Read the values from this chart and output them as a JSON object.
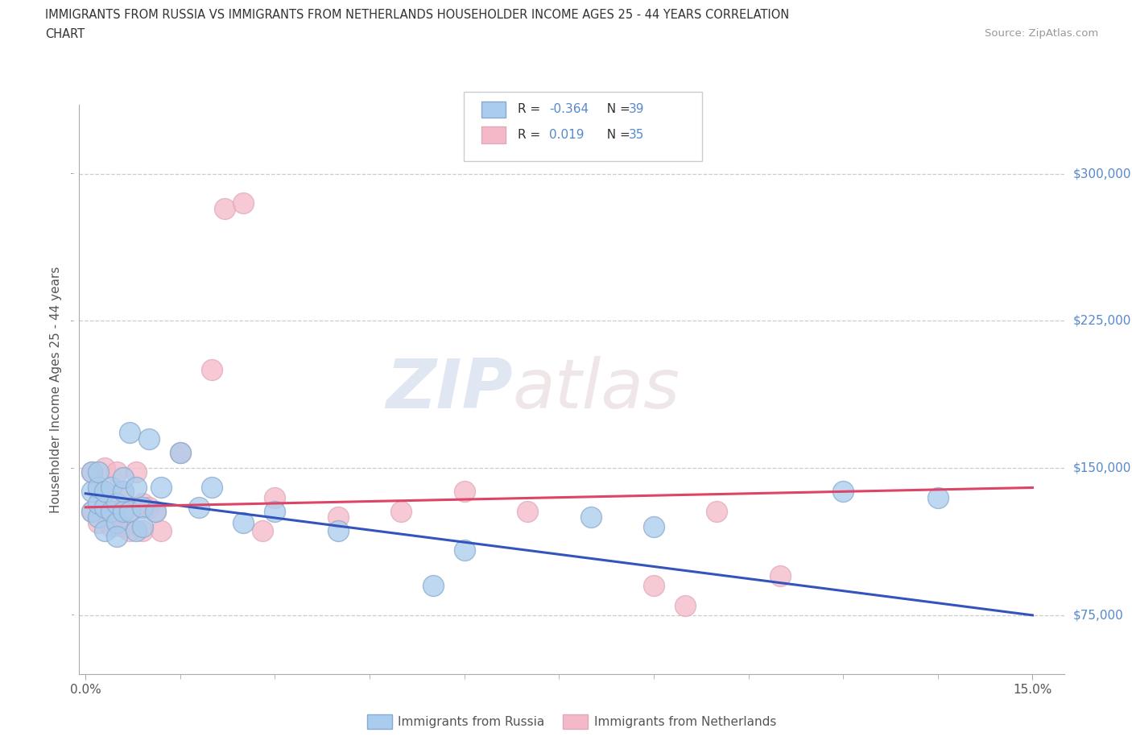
{
  "title_line1": "IMMIGRANTS FROM RUSSIA VS IMMIGRANTS FROM NETHERLANDS HOUSEHOLDER INCOME AGES 25 - 44 YEARS CORRELATION",
  "title_line2": "CHART",
  "source": "Source: ZipAtlas.com",
  "ylabel": "Householder Income Ages 25 - 44 years",
  "xlim": [
    -0.001,
    0.155
  ],
  "ylim": [
    45000,
    335000
  ],
  "ytick_values": [
    75000,
    150000,
    225000,
    300000
  ],
  "ytick_labels": [
    "$75,000",
    "$150,000",
    "$225,000",
    "$300,000"
  ],
  "xtick_major": [
    0.0,
    0.15
  ],
  "xtick_major_labels": [
    "0.0%",
    "15.0%"
  ],
  "xtick_minor": [
    0.015,
    0.03,
    0.045,
    0.06,
    0.075,
    0.09,
    0.105,
    0.12,
    0.135
  ],
  "russia_fill": "#aaccee",
  "russia_edge": "#88aacc",
  "netherlands_fill": "#f5b8c8",
  "netherlands_edge": "#ddaabb",
  "russia_line_color": "#3355bb",
  "netherlands_line_color": "#dd4466",
  "watermark": "ZIPatlas",
  "grid_color": "#cccccc",
  "label_color": "#5588cc",
  "text_color": "#444444",
  "russia_trend_x": [
    0.0,
    0.15
  ],
  "russia_trend_y": [
    137000,
    75000
  ],
  "netherlands_trend_x": [
    0.0,
    0.15
  ],
  "netherlands_trend_y": [
    130000,
    140000
  ],
  "russia_x": [
    0.001,
    0.001,
    0.001,
    0.002,
    0.002,
    0.002,
    0.002,
    0.003,
    0.003,
    0.003,
    0.004,
    0.004,
    0.005,
    0.005,
    0.005,
    0.006,
    0.006,
    0.006,
    0.007,
    0.007,
    0.008,
    0.008,
    0.009,
    0.009,
    0.01,
    0.011,
    0.012,
    0.015,
    0.018,
    0.02,
    0.025,
    0.03,
    0.04,
    0.055,
    0.06,
    0.08,
    0.09,
    0.12,
    0.135
  ],
  "russia_y": [
    128000,
    138000,
    148000,
    125000,
    132000,
    140000,
    148000,
    130000,
    138000,
    118000,
    128000,
    140000,
    122000,
    132000,
    115000,
    128000,
    138000,
    145000,
    168000,
    128000,
    118000,
    140000,
    130000,
    120000,
    165000,
    128000,
    140000,
    158000,
    130000,
    140000,
    122000,
    128000,
    118000,
    90000,
    108000,
    125000,
    120000,
    138000,
    135000
  ],
  "netherlands_x": [
    0.001,
    0.001,
    0.002,
    0.002,
    0.003,
    0.003,
    0.003,
    0.004,
    0.004,
    0.005,
    0.005,
    0.006,
    0.006,
    0.007,
    0.007,
    0.008,
    0.009,
    0.009,
    0.01,
    0.011,
    0.012,
    0.015,
    0.02,
    0.022,
    0.025,
    0.028,
    0.03,
    0.04,
    0.05,
    0.06,
    0.07,
    0.09,
    0.095,
    0.1,
    0.11
  ],
  "netherlands_y": [
    128000,
    148000,
    122000,
    138000,
    128000,
    138000,
    150000,
    132000,
    120000,
    148000,
    128000,
    120000,
    138000,
    128000,
    118000,
    148000,
    132000,
    118000,
    130000,
    128000,
    118000,
    158000,
    200000,
    282000,
    285000,
    118000,
    135000,
    125000,
    128000,
    138000,
    128000,
    90000,
    80000,
    128000,
    95000
  ]
}
